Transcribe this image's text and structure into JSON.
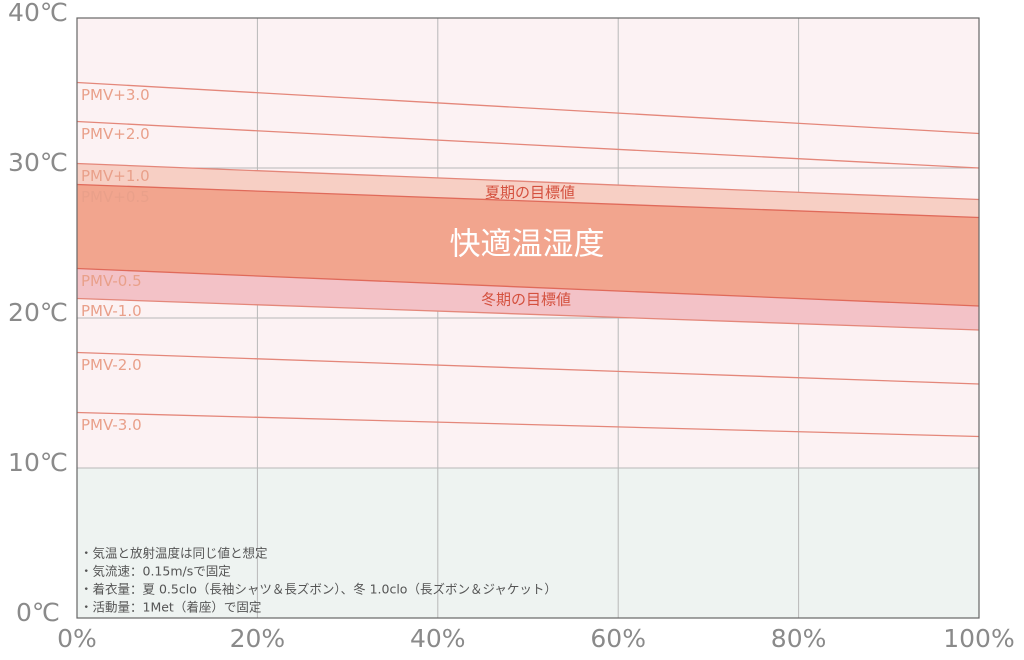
{
  "chart_data": {
    "type": "line",
    "x": [
      0,
      100
    ],
    "xlim": [
      0,
      100
    ],
    "ylim": [
      0,
      40
    ],
    "xticks": [
      {
        "value": 0,
        "label": "0%"
      },
      {
        "value": 20,
        "label": "20%"
      },
      {
        "value": 40,
        "label": "40%"
      },
      {
        "value": 60,
        "label": "60%"
      },
      {
        "value": 80,
        "label": "80%"
      },
      {
        "value": 100,
        "label": "100%"
      }
    ],
    "yticks": [
      {
        "value": 0,
        "label": "0℃"
      },
      {
        "value": 10,
        "label": "10℃"
      },
      {
        "value": 20,
        "label": "20℃"
      },
      {
        "value": 30,
        "label": "30℃"
      },
      {
        "value": 40,
        "label": "40℃"
      }
    ],
    "grid": true,
    "series": [
      {
        "name": "PMV+3.0",
        "color": "#e4877a",
        "values": [
          35.7,
          32.3
        ]
      },
      {
        "name": "PMV+2.0",
        "color": "#e4877a",
        "values": [
          33.1,
          30.0
        ]
      },
      {
        "name": "PMV+1.0",
        "color": "#e4877a",
        "values": [
          30.3,
          27.9
        ],
        "fill": "#f7cfc4"
      },
      {
        "name": "PMV+0.5",
        "color": "#e06a5a",
        "values": [
          28.9,
          26.7
        ],
        "fill": "#f2a58e"
      },
      {
        "name": "PMV-0.5",
        "color": "#e06a5a",
        "values": [
          23.3,
          20.8
        ],
        "fill": "#f3c2c7"
      },
      {
        "name": "PMV-1.0",
        "color": "#e4877a",
        "values": [
          21.3,
          19.2
        ]
      },
      {
        "name": "PMV-2.0",
        "color": "#e4877a",
        "values": [
          17.7,
          15.6
        ]
      },
      {
        "name": "PMV-3.0",
        "color": "#e4877a",
        "values": [
          13.7,
          12.1
        ]
      }
    ],
    "annotations": {
      "summer": "夏期の目標値",
      "winter": "冬期の目標値",
      "comfort": "快適温湿度"
    },
    "notes": [
      "・気温と放射温度は同じ値と想定",
      "・気流速：0.15m/sで固定",
      "・着衣量：夏 0.5clo（長袖シャツ＆長ズボン）、冬 1.0clo（長ズボン＆ジャケット）",
      "・活動量：1Met（着座）で固定"
    ]
  }
}
